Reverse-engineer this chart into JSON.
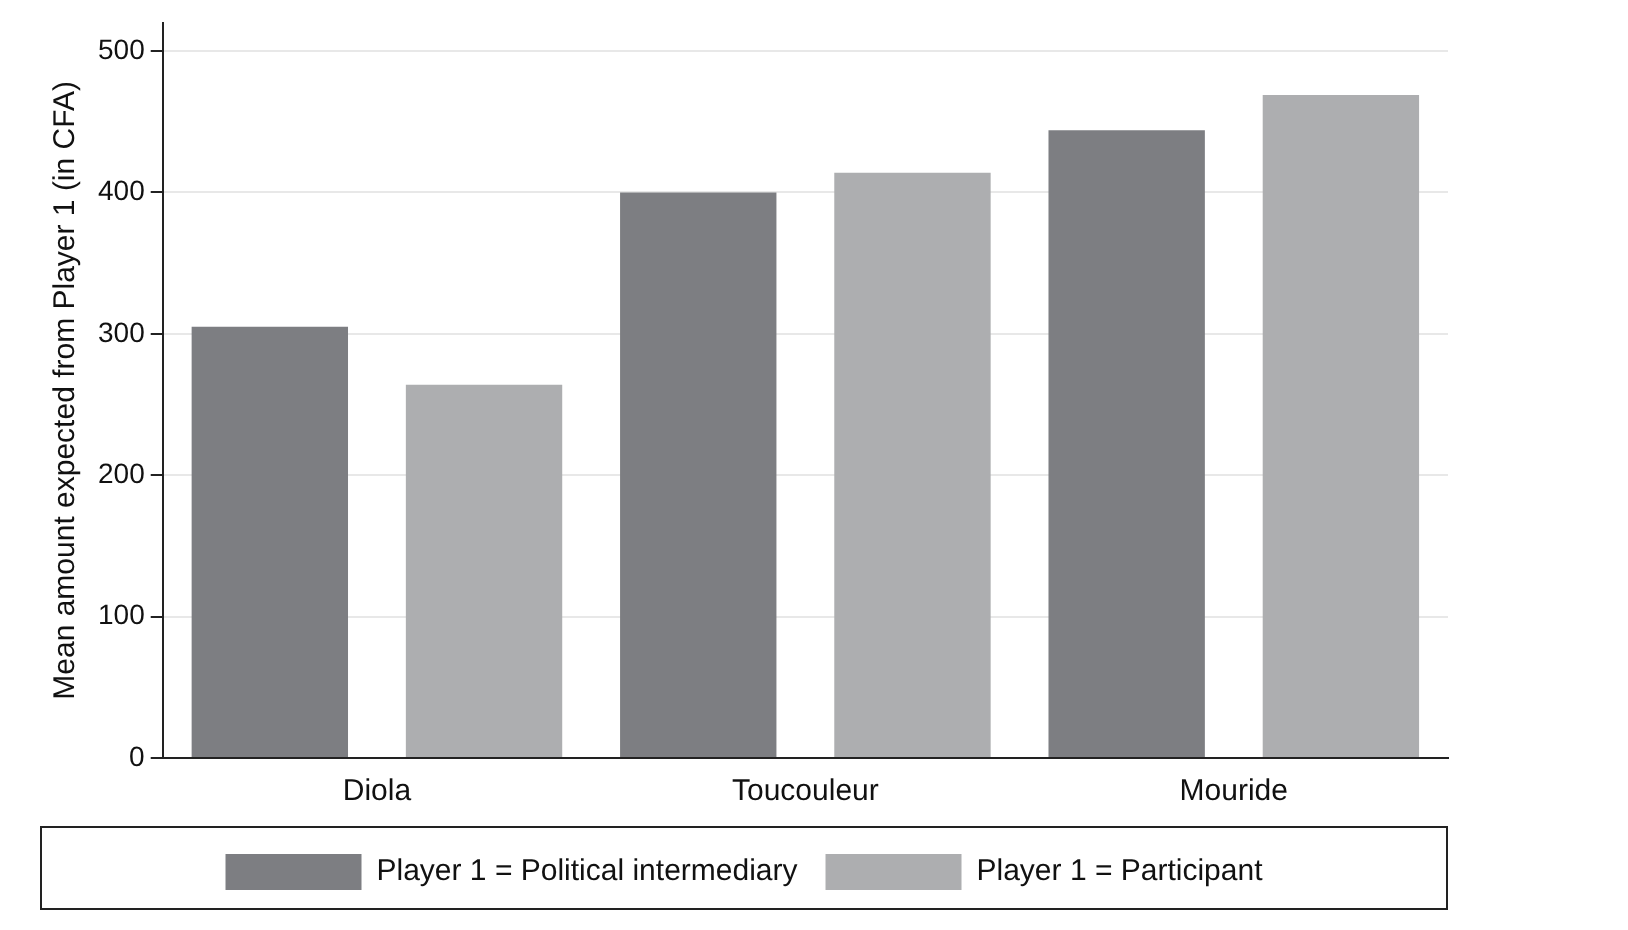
{
  "chart_data": {
    "type": "bar",
    "ylabel": "Mean amount expected from Player 1 (in CFA)",
    "categories": [
      "Diola",
      "Toucouleur",
      "Mouride"
    ],
    "series": [
      {
        "name": "Player 1 = Political intermediary",
        "color": "#7d7e82",
        "values": [
          305,
          400,
          444
        ]
      },
      {
        "name": "Player 1 = Participant",
        "color": "#adaeb0",
        "values": [
          264,
          414,
          469
        ]
      }
    ],
    "ylim": [
      0,
      520
    ],
    "yticks": [
      0,
      100,
      200,
      300,
      400,
      500
    ],
    "grid": "y",
    "legend": "bottom"
  }
}
